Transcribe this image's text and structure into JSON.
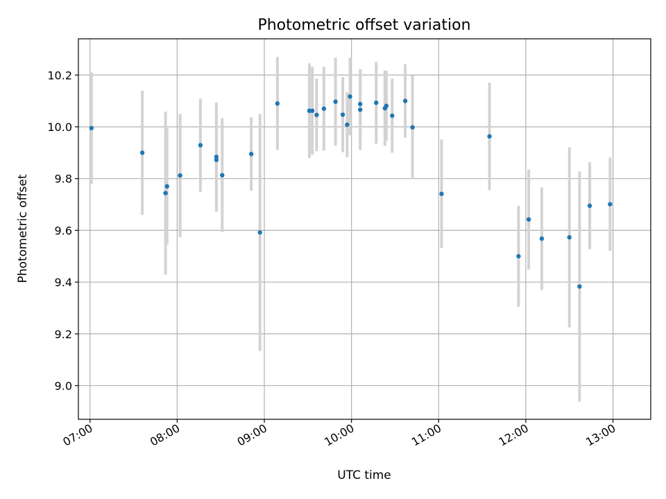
{
  "chart_data": {
    "type": "scatter",
    "title": "Photometric offset variation",
    "xlabel": "UTC time",
    "ylabel": "Photometric offset",
    "xlim": [
      "06:52",
      "13:26"
    ],
    "ylim": [
      8.87,
      10.34
    ],
    "x_ticks": [
      "07:00",
      "08:00",
      "09:00",
      "10:00",
      "11:00",
      "12:00",
      "13:00"
    ],
    "y_ticks": [
      "9.0",
      "9.2",
      "9.4",
      "9.6",
      "9.8",
      "10.0",
      "10.2"
    ],
    "grid": true,
    "colors": {
      "point": "#1f77b4",
      "errorbar": "#d3d3d3",
      "grid": "#b0b0b0"
    },
    "points": [
      {
        "x": "07:01",
        "y": 9.995,
        "err": 0.215
      },
      {
        "x": "07:36",
        "y": 9.9,
        "err": 0.24
      },
      {
        "x": "07:52",
        "y": 9.744,
        "err": 0.315
      },
      {
        "x": "07:53",
        "y": 9.77,
        "err": 0.225
      },
      {
        "x": "08:02",
        "y": 9.812,
        "err": 0.238
      },
      {
        "x": "08:16",
        "y": 9.929,
        "err": 0.18
      },
      {
        "x": "08:27",
        "y": 9.884,
        "err": 0.21
      },
      {
        "x": "08:27",
        "y": 9.872,
        "err": 0.2
      },
      {
        "x": "08:31",
        "y": 9.813,
        "err": 0.22
      },
      {
        "x": "08:51",
        "y": 9.895,
        "err": 0.142
      },
      {
        "x": "08:57",
        "y": 9.592,
        "err": 0.458
      },
      {
        "x": "09:09",
        "y": 10.09,
        "err": 0.18
      },
      {
        "x": "09:31",
        "y": 10.062,
        "err": 0.183
      },
      {
        "x": "09:33",
        "y": 10.062,
        "err": 0.17
      },
      {
        "x": "09:36",
        "y": 10.046,
        "err": 0.14
      },
      {
        "x": "09:41",
        "y": 10.07,
        "err": 0.162
      },
      {
        "x": "09:49",
        "y": 10.097,
        "err": 0.17
      },
      {
        "x": "09:54",
        "y": 10.047,
        "err": 0.145
      },
      {
        "x": "09:57",
        "y": 10.008,
        "err": 0.125
      },
      {
        "x": "09:59",
        "y": 10.117,
        "err": 0.15
      },
      {
        "x": "10:06",
        "y": 10.066,
        "err": 0.155
      },
      {
        "x": "10:06",
        "y": 10.088,
        "err": 0.135
      },
      {
        "x": "10:17",
        "y": 10.093,
        "err": 0.158
      },
      {
        "x": "10:23",
        "y": 10.072,
        "err": 0.145
      },
      {
        "x": "10:24",
        "y": 10.081,
        "err": 0.135
      },
      {
        "x": "10:28",
        "y": 10.043,
        "err": 0.143
      },
      {
        "x": "10:37",
        "y": 10.1,
        "err": 0.142
      },
      {
        "x": "10:42",
        "y": 9.998,
        "err": 0.2
      },
      {
        "x": "11:02",
        "y": 9.741,
        "err": 0.21
      },
      {
        "x": "11:35",
        "y": 9.963,
        "err": 0.208
      },
      {
        "x": "11:55",
        "y": 9.5,
        "err": 0.195
      },
      {
        "x": "12:02",
        "y": 9.642,
        "err": 0.193
      },
      {
        "x": "12:11",
        "y": 9.568,
        "err": 0.198
      },
      {
        "x": "12:30",
        "y": 9.573,
        "err": 0.348
      },
      {
        "x": "12:37",
        "y": 9.383,
        "err": 0.445
      },
      {
        "x": "12:44",
        "y": 9.695,
        "err": 0.168
      },
      {
        "x": "12:58",
        "y": 9.701,
        "err": 0.18
      }
    ]
  }
}
